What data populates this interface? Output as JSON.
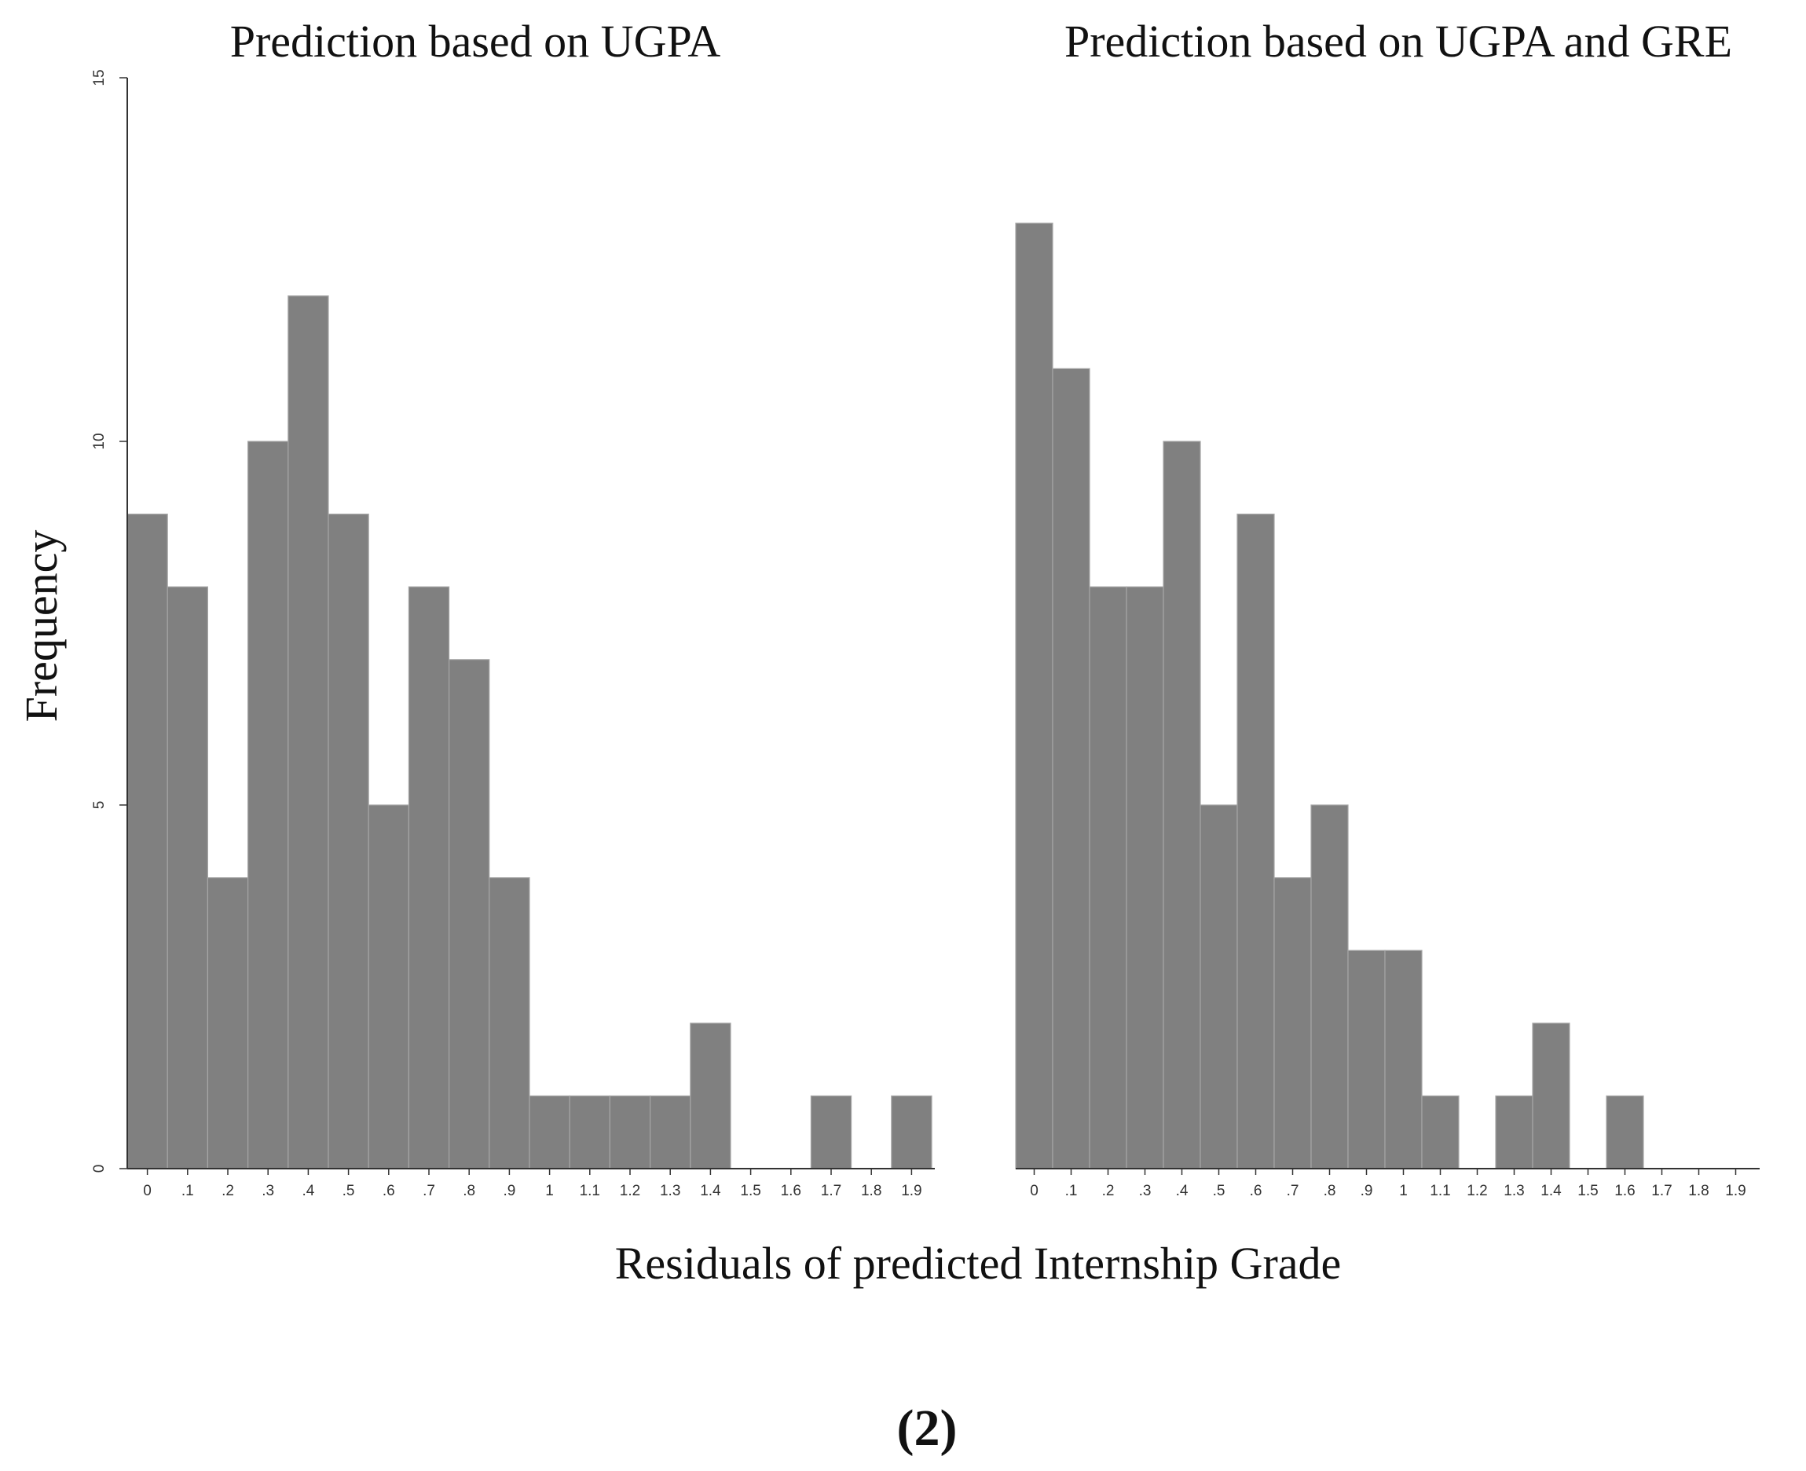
{
  "ylabel": "Frequency",
  "xlabel": "Residuals of predicted Internship Grade",
  "panel_label": "(2)",
  "colors": {
    "bar": "#808080",
    "bar_edge": "#a6a6a6",
    "axis": "#333333"
  },
  "chart_data": [
    {
      "type": "bar",
      "title": "Prediction based on UGPA",
      "xlabel": "Residuals of predicted Internship Grade",
      "ylabel": "Frequency",
      "ylim": [
        0,
        15
      ],
      "yticks": [
        "0",
        "5",
        "10",
        "15"
      ],
      "xticks": [
        "0",
        ".1",
        ".2",
        ".3",
        ".4",
        ".5",
        ".6",
        ".7",
        ".8",
        ".9",
        "1",
        "1.1",
        "1.2",
        "1.3",
        "1.4",
        "1.5",
        "1.6",
        "1.7",
        "1.8",
        "1.9"
      ],
      "bin_width": 0.1,
      "values": [
        9,
        8,
        4,
        10,
        12,
        9,
        5,
        8,
        7,
        4,
        1,
        1,
        1,
        1,
        2,
        0,
        0,
        1,
        0,
        1
      ]
    },
    {
      "type": "bar",
      "title": "Prediction based on UGPA and GRE",
      "xlabel": "Residuals of predicted Internship Grade",
      "ylabel": "Frequency",
      "ylim": [
        0,
        15
      ],
      "yticks": [
        "0",
        "5",
        "10",
        "15"
      ],
      "xticks": [
        "0",
        ".1",
        ".2",
        ".3",
        ".4",
        ".5",
        ".6",
        ".7",
        ".8",
        ".9",
        "1",
        "1.1",
        "1.2",
        "1.3",
        "1.4",
        "1.5",
        "1.6",
        "1.7",
        "1.8",
        "1.9"
      ],
      "bin_width": 0.1,
      "values": [
        13,
        11,
        8,
        8,
        10,
        5,
        9,
        4,
        5,
        3,
        3,
        1,
        0,
        1,
        2,
        0,
        1,
        0,
        0,
        0
      ]
    }
  ]
}
